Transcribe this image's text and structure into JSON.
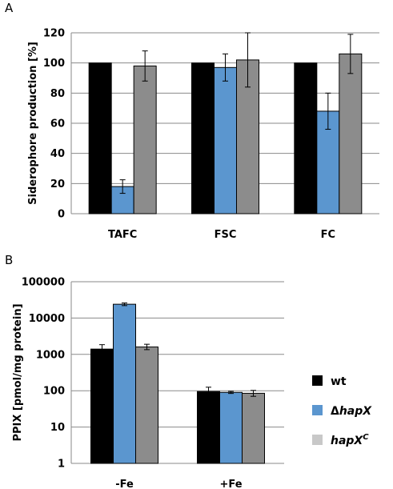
{
  "panels": {
    "a": {
      "letter": "A"
    },
    "b": {
      "letter": "B"
    }
  },
  "legend": {
    "items": [
      {
        "prefix": "",
        "italic": "",
        "suffix": "wt",
        "sup": "",
        "color": "#000000"
      },
      {
        "prefix": "Δ",
        "italic": "hapX",
        "suffix": "",
        "sup": "",
        "color": "#5b96cf"
      },
      {
        "prefix": "",
        "italic": "hapX",
        "suffix": "",
        "sup": "C",
        "color": "#c8c8c8"
      }
    ]
  },
  "chart_data": [
    {
      "type": "bar",
      "ylabel": "Siderophore production [%]",
      "categories": [
        "TAFC",
        "FSC",
        "FC"
      ],
      "ylim": [
        0,
        120
      ],
      "yticks": [
        0,
        20,
        40,
        60,
        80,
        100,
        120
      ],
      "grid": true,
      "series": [
        {
          "name": "wt",
          "color": "#000000",
          "values": [
            100,
            100,
            100
          ],
          "errors": [
            0,
            0,
            0
          ]
        },
        {
          "name": "ΔhapX",
          "color": "#5b96cf",
          "values": [
            18,
            97,
            68
          ],
          "errors": [
            4.5,
            9,
            12
          ]
        },
        {
          "name": "hapXC",
          "color": "#8c8c8c",
          "values": [
            98,
            102,
            106
          ],
          "errors": [
            10,
            18,
            13
          ]
        }
      ]
    },
    {
      "type": "bar",
      "ylabel": "PPIX [pmol/mg protein]",
      "categories": [
        "-Fe",
        "+Fe"
      ],
      "yscale": "log",
      "ylim": [
        1,
        100000
      ],
      "yticks": [
        "1",
        "10",
        "100",
        "1000",
        "10000",
        "100000"
      ],
      "grid": true,
      "legend_position": "right",
      "series": [
        {
          "name": "wt",
          "color": "#000000",
          "values": [
            1400,
            95
          ],
          "errors": [
            [
              1050,
              1850
            ],
            [
              75,
              125
            ]
          ]
        },
        {
          "name": "ΔhapX",
          "color": "#5b96cf",
          "values": [
            24000,
            90
          ],
          "errors": [
            [
              22000,
              26000
            ],
            [
              84,
              96
            ]
          ]
        },
        {
          "name": "hapXC",
          "color": "#8c8c8c",
          "values": [
            1600,
            85
          ],
          "errors": [
            [
              1350,
              1900
            ],
            [
              70,
              102
            ]
          ]
        }
      ]
    }
  ]
}
